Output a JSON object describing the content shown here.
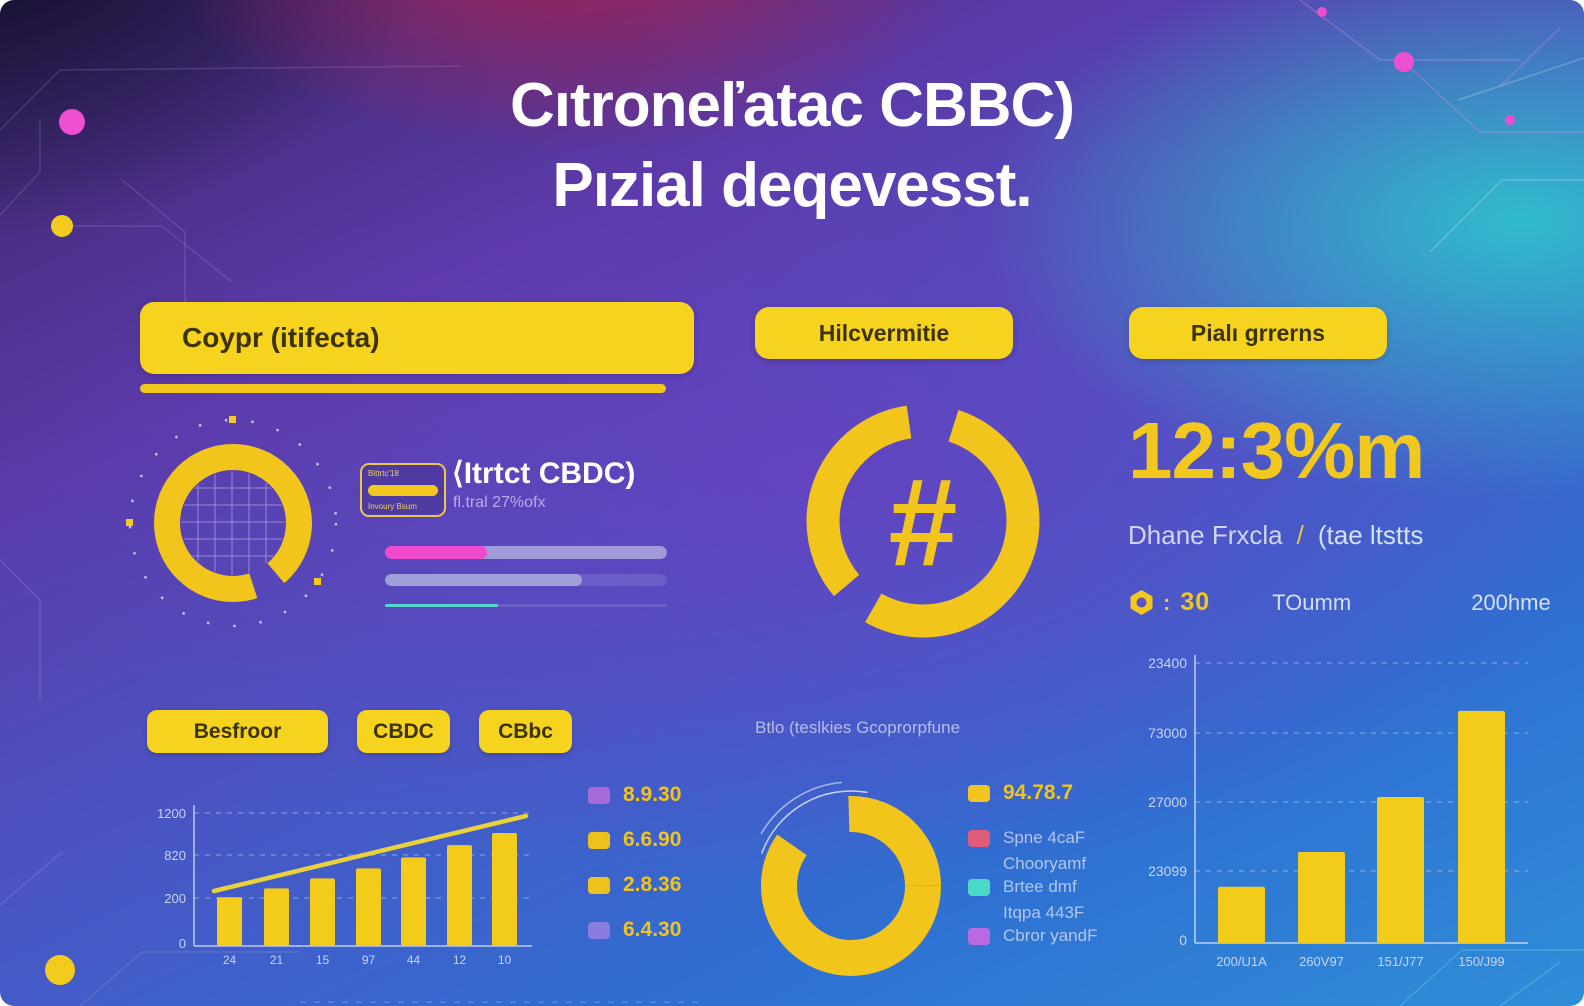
{
  "header": {
    "title_line1": "Cıtroneľatac CBBC)",
    "title_line2": "Pızial deqevesst."
  },
  "left": {
    "banner_label": "Coypr (itifecta)",
    "badge": {
      "line1": "Bittrtc'18",
      "line2": "Invoury Bsum"
    },
    "headline": "⟨Itrtct CBDC)",
    "subline": "fl.tral 27%ofx",
    "progress_bars": [
      {
        "name": "progress-1",
        "primary_pct": 36,
        "primary_color": "#ef49cd",
        "secondary_pct": 64,
        "secondary_color": "rgba(202,208,234,0.55)",
        "height": 13
      },
      {
        "name": "progress-2",
        "primary_pct": 70,
        "primary_color": "rgba(196,205,232,0.6)",
        "secondary_pct": 0,
        "secondary_color": "",
        "height": 12
      },
      {
        "name": "progress-3",
        "primary_pct": 40,
        "primary_color": "#56d6cf",
        "secondary_pct": 0,
        "secondary_color": "",
        "height": 3
      }
    ],
    "buttons": [
      "Besfroor",
      "CBDC",
      "CBbc"
    ]
  },
  "middle": {
    "banner_label": "Hilcvermitie",
    "hash_symbol": "#"
  },
  "right": {
    "banner_label": "Pialı grrerns",
    "big_stat": "12:3%m",
    "subtitle_left": "Dhane Frxcla",
    "subtitle_divider": "/",
    "subtitle_right": "(tae ltstts",
    "meta_colon": ":",
    "meta_value": "30",
    "meta_item2": "TOumm",
    "meta_item3": "200hme"
  },
  "colors": {
    "accent_yellow": "#f2c81e",
    "pink": "#ef49cd",
    "teal": "#56d6cf",
    "purple": "#a66bd8",
    "rose": "#e05a7a",
    "violet": "#b96ae0"
  },
  "chart_data": [
    {
      "type": "bar",
      "position": "bottom-left",
      "categories": [
        "24",
        "21",
        "15",
        "97",
        "44",
        "12",
        "10"
      ],
      "values": [
        440,
        520,
        610,
        700,
        800,
        910,
        1020
      ],
      "yticks": [
        "1200",
        "820",
        "200",
        "0"
      ],
      "ylim": [
        0,
        1200
      ],
      "trendline": true,
      "bar_color": "#f3cb1a",
      "legend": [
        {
          "color": "#a66bd8",
          "label": "8.9.30"
        },
        {
          "color": "#eec11d",
          "label": "6.6.90"
        },
        {
          "color": "#eec11d",
          "label": "2.8.36"
        },
        {
          "color": "#8b7ce0",
          "label": "6.4.30"
        }
      ]
    },
    {
      "type": "donut",
      "position": "bottom-middle",
      "title": "Btlo (teslkies Gcoprorpfune",
      "segments": [
        {
          "label": "94.78.7",
          "value": 83,
          "color": "#f2c51d"
        },
        {
          "label": "",
          "value": 17,
          "color": "transparent"
        }
      ],
      "legend": [
        {
          "color": "#f2c51d",
          "label": "94.78.7",
          "emphasis": true
        },
        {
          "color": "#e05a7a",
          "label": "Spne 4caF",
          "emphasis": false
        },
        {
          "color": null,
          "label": "Chooryamf",
          "emphasis": false
        },
        {
          "color": "#4ad9c5",
          "label": "Brtee dmf",
          "emphasis": false
        },
        {
          "color": null,
          "label": "Itqpa 443F",
          "emphasis": false
        },
        {
          "color": "#b96ae0",
          "label": "Cbror yandF",
          "emphasis": false
        }
      ]
    },
    {
      "type": "bar",
      "position": "bottom-right",
      "categories": [
        "200/U1A",
        "260V97",
        "151/J77",
        "150/J99"
      ],
      "values": [
        4700,
        7600,
        12200,
        19400
      ],
      "yticks": [
        "23400",
        "73000",
        "27000",
        "23099",
        "0"
      ],
      "ylim": [
        0,
        23400
      ],
      "trendline": false,
      "bar_color": "#f3cb1a",
      "legend": []
    }
  ]
}
